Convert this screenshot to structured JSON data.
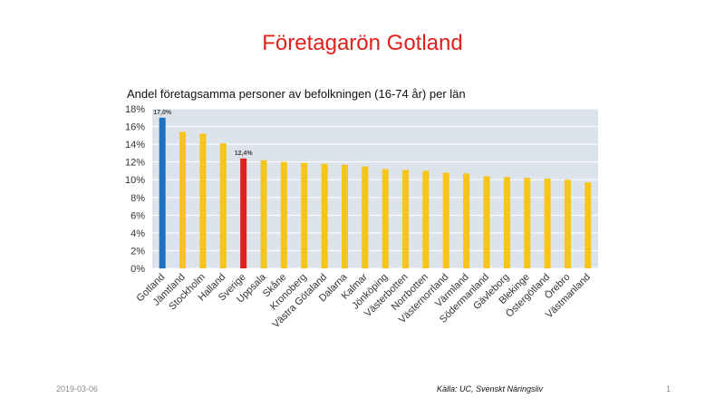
{
  "slide": {
    "title": "Företagarön Gotland",
    "date": "2019-03-06",
    "source": "Källa: UC, Svenskt Näringsliv",
    "page_number": "1"
  },
  "chart_data": {
    "type": "bar",
    "title": "Andel företagsamma personer av befolkningen (16-74 år) per län",
    "xlabel": "",
    "ylabel": "",
    "ylim": [
      0,
      18
    ],
    "yticks": [
      0,
      2,
      4,
      6,
      8,
      10,
      12,
      14,
      16,
      18
    ],
    "ytick_labels": [
      "0%",
      "2%",
      "4%",
      "6%",
      "8%",
      "10%",
      "12%",
      "14%",
      "16%",
      "18%"
    ],
    "grid": true,
    "legend": "none",
    "categories": [
      "Gotland",
      "Jämtland",
      "Stockholm",
      "Halland",
      "Sverige",
      "Uppsala",
      "Skåne",
      "Kronoberg",
      "Västra Götaland",
      "Dalarna",
      "Kalmar",
      "Jönköping",
      "Västerbotten",
      "Norrbotten",
      "Västernorrland",
      "Värmland",
      "Södermanland",
      "Gävleborg",
      "Blekinge",
      "Östergötland",
      "Örebro",
      "Västmanland"
    ],
    "values": [
      17.0,
      15.4,
      15.2,
      14.1,
      12.4,
      12.2,
      12.0,
      11.9,
      11.8,
      11.7,
      11.5,
      11.2,
      11.1,
      11.0,
      10.8,
      10.7,
      10.4,
      10.3,
      10.2,
      10.1,
      10.0,
      9.7
    ],
    "data_labels": {
      "0": "17,0%",
      "4": "12,4%"
    },
    "colors": {
      "default": "#f5c518",
      "highlight_gotland": "#1f6fc0",
      "highlight_sverige": "#e0201b",
      "plot_background": "#dde3ea",
      "gridline": "#ffffff",
      "axis_text": "#333333"
    }
  }
}
